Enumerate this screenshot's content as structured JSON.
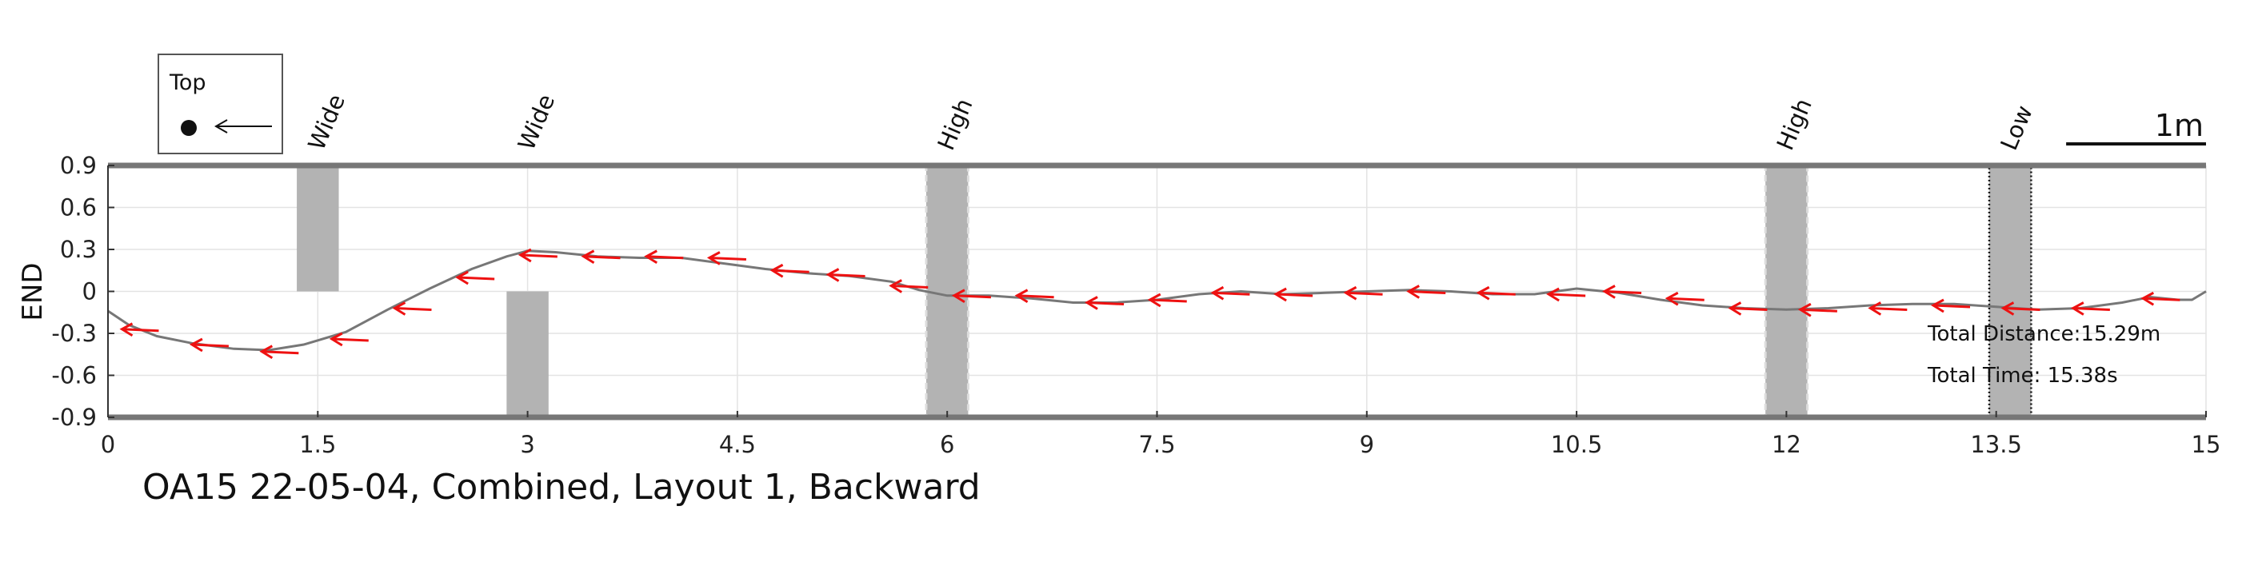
{
  "chart_data": {
    "type": "line",
    "title": "OA15 22-05-04, Combined, Layout 1, Backward",
    "xlabel": "",
    "ylabel": "END",
    "xlim": [
      0,
      15
    ],
    "ylim": [
      -0.9,
      0.9
    ],
    "xticks": [
      "0",
      "1.5",
      "3",
      "4.5",
      "6",
      "7.5",
      "9",
      "10.5",
      "12",
      "13.5",
      "15"
    ],
    "yticks": [
      "0.9",
      "0.6",
      "0.3",
      "0",
      "-0.3",
      "-0.6",
      "-0.9"
    ],
    "grid": true,
    "series": [
      {
        "color": "#777777",
        "x": [
          0,
          0.15,
          0.35,
          0.6,
          0.9,
          1.15,
          1.4,
          1.7,
          2.0,
          2.3,
          2.6,
          2.85,
          3.0,
          3.2,
          3.5,
          3.8,
          4.1,
          4.4,
          4.7,
          5.0,
          5.3,
          5.6,
          5.8,
          6.0,
          6.3,
          6.6,
          6.9,
          7.2,
          7.5,
          7.8,
          8.1,
          8.4,
          8.7,
          9.0,
          9.3,
          9.6,
          9.9,
          10.2,
          10.5,
          10.8,
          11.1,
          11.4,
          11.7,
          12.0,
          12.3,
          12.6,
          12.9,
          13.2,
          13.5,
          13.8,
          14.1,
          14.4,
          14.6,
          14.8,
          14.9,
          15.0
        ],
        "y": [
          -0.14,
          -0.24,
          -0.32,
          -0.37,
          -0.41,
          -0.42,
          -0.38,
          -0.29,
          -0.13,
          0.02,
          0.16,
          0.25,
          0.29,
          0.28,
          0.25,
          0.24,
          0.24,
          0.2,
          0.16,
          0.13,
          0.11,
          0.07,
          0.01,
          -0.03,
          -0.03,
          -0.05,
          -0.08,
          -0.08,
          -0.06,
          -0.02,
          0.0,
          -0.02,
          -0.01,
          0.0,
          0.01,
          0.0,
          -0.02,
          -0.02,
          0.02,
          -0.01,
          -0.06,
          -0.1,
          -0.12,
          -0.13,
          -0.12,
          -0.1,
          -0.09,
          -0.09,
          -0.11,
          -0.13,
          -0.12,
          -0.08,
          -0.04,
          -0.06,
          -0.06,
          0.0
        ]
      }
    ],
    "arrows": {
      "color": "#ee1111",
      "direction": "left",
      "points": [
        [
          0.1,
          -0.27
        ],
        [
          0.6,
          -0.38
        ],
        [
          1.1,
          -0.43
        ],
        [
          1.6,
          -0.34
        ],
        [
          2.05,
          -0.12
        ],
        [
          2.5,
          0.1
        ],
        [
          2.95,
          0.26
        ],
        [
          3.4,
          0.25
        ],
        [
          3.85,
          0.25
        ],
        [
          4.3,
          0.24
        ],
        [
          4.75,
          0.15
        ],
        [
          5.15,
          0.12
        ],
        [
          5.6,
          0.04
        ],
        [
          6.05,
          -0.03
        ],
        [
          6.5,
          -0.03
        ],
        [
          7.0,
          -0.08
        ],
        [
          7.45,
          -0.06
        ],
        [
          7.9,
          -0.01
        ],
        [
          8.35,
          -0.02
        ],
        [
          8.85,
          -0.01
        ],
        [
          9.3,
          0.0
        ],
        [
          9.8,
          -0.01
        ],
        [
          10.3,
          -0.02
        ],
        [
          10.7,
          0.0
        ],
        [
          11.15,
          -0.05
        ],
        [
          11.6,
          -0.12
        ],
        [
          12.1,
          -0.13
        ],
        [
          12.6,
          -0.12
        ],
        [
          13.05,
          -0.1
        ],
        [
          13.55,
          -0.12
        ],
        [
          14.05,
          -0.12
        ],
        [
          14.55,
          -0.05
        ]
      ]
    },
    "obstacles": [
      {
        "label": "Wide",
        "x": [
          1.35,
          1.65
        ],
        "y": [
          0,
          0.9
        ],
        "style": "plain"
      },
      {
        "label": "Wide",
        "x": [
          2.85,
          3.15
        ],
        "y": [
          -0.9,
          0
        ],
        "style": "plain"
      },
      {
        "label": "High",
        "x": [
          5.85,
          6.15
        ],
        "y": [
          -0.9,
          0.9
        ],
        "style": "dashed-light"
      },
      {
        "label": "High",
        "x": [
          11.85,
          12.15
        ],
        "y": [
          -0.9,
          0.9
        ],
        "style": "dashed-light"
      },
      {
        "label": "Low",
        "x": [
          13.45,
          13.75
        ],
        "y": [
          -0.9,
          0.9
        ],
        "style": "dotted-dark"
      }
    ],
    "annotations": {
      "total_distance": "Total Distance:15.29m",
      "total_time": "Total Time: 15.38s"
    },
    "legend": {
      "title": "Top",
      "placement": "top-left"
    },
    "scale_bar": {
      "label": "1m",
      "length": 1,
      "placement": "top-right"
    }
  }
}
